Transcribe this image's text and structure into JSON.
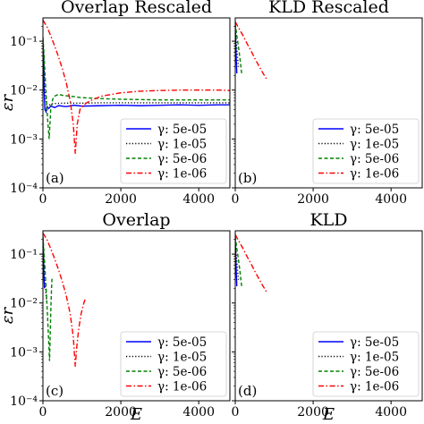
{
  "chart_data": [
    {
      "type": "line",
      "panel_label": "(a)",
      "title": "Overlap Rescaled",
      "xlabel": "",
      "ylabel": "εr",
      "xscale": "linear",
      "yscale": "log",
      "xlim": [
        0,
        4800
      ],
      "ylim": [
        0.0001,
        0.3
      ],
      "xticks": [
        0,
        2000,
        4000
      ],
      "xtick_labels": [
        "0",
        "2000",
        "4000"
      ],
      "yticks": [
        0.0001,
        0.001,
        0.01,
        0.1
      ],
      "ytick_labels": [
        "10⁻⁴",
        "10⁻³",
        "10⁻²",
        "10⁻¹"
      ],
      "show_yticklabels": true,
      "show_xticklabels": true,
      "legend_position": "lower-right",
      "series": [
        {
          "name": "γ: 5e-05",
          "color": "#0000ff",
          "dash": "solid",
          "x": [
            0,
            15,
            30,
            50,
            80,
            100,
            150,
            200,
            300,
            400,
            600,
            800,
            1000,
            1500,
            2000,
            2500,
            3000,
            3500,
            4000,
            4500,
            4800
          ],
          "y": [
            0.1,
            0.05,
            0.01,
            0.004,
            0.0036,
            0.0045,
            0.0042,
            0.0047,
            0.0044,
            0.0048,
            0.0046,
            0.0049,
            0.0047,
            0.0048,
            0.0049,
            0.0048,
            0.0049,
            0.005,
            0.0049,
            0.005,
            0.005
          ]
        },
        {
          "name": "γ: 1e-05",
          "color": "#000000",
          "dash": "dotted",
          "x": [
            0,
            20,
            50,
            100,
            150,
            200,
            300,
            500,
            800,
            1000,
            1500,
            2000,
            2500,
            3000,
            3500,
            4000,
            4500,
            4800
          ],
          "y": [
            0.12,
            0.05,
            0.01,
            0.0045,
            0.0048,
            0.0052,
            0.0053,
            0.0054,
            0.0054,
            0.0054,
            0.0055,
            0.0055,
            0.0055,
            0.0055,
            0.0055,
            0.0055,
            0.0055,
            0.0055
          ]
        },
        {
          "name": "γ: 5e-06",
          "color": "#008000",
          "dash": "dashed",
          "x": [
            0,
            30,
            70,
            120,
            160,
            200,
            250,
            300,
            400,
            500,
            700,
            1000,
            1500,
            2000,
            2500,
            3000,
            3500,
            4000,
            4500,
            4800
          ],
          "y": [
            0.12,
            0.05,
            0.012,
            0.0025,
            0.001,
            0.004,
            0.0065,
            0.0075,
            0.0082,
            0.0078,
            0.0075,
            0.007,
            0.0067,
            0.0065,
            0.0064,
            0.0063,
            0.0063,
            0.0063,
            0.0063,
            0.0063
          ]
        },
        {
          "name": "γ: 1e-06",
          "color": "#ff0000",
          "dash": "dashdot",
          "x": [
            0,
            100,
            200,
            300,
            400,
            500,
            600,
            700,
            780,
            830,
            880,
            950,
            1050,
            1200,
            1500,
            2000,
            2500,
            3000,
            3500,
            4000,
            4500,
            4800
          ],
          "y": [
            0.27,
            0.2,
            0.13,
            0.08,
            0.048,
            0.027,
            0.014,
            0.006,
            0.002,
            0.0005,
            0.002,
            0.004,
            0.005,
            0.006,
            0.0075,
            0.0088,
            0.0095,
            0.0098,
            0.01,
            0.01,
            0.01,
            0.0098
          ]
        }
      ]
    },
    {
      "type": "line",
      "panel_label": "(b)",
      "title": "KLD Rescaled",
      "xlabel": "",
      "ylabel": "",
      "xscale": "linear",
      "yscale": "log",
      "xlim": [
        0,
        4800
      ],
      "ylim": [
        0.0001,
        0.3
      ],
      "xticks": [
        0,
        2000,
        4000
      ],
      "xtick_labels": [
        "0",
        "2000",
        "4000"
      ],
      "yticks": [
        0.0001,
        0.001,
        0.01,
        0.1
      ],
      "ytick_labels": [
        "10⁻⁴",
        "10⁻³",
        "10⁻²",
        "10⁻¹"
      ],
      "show_yticklabels": false,
      "show_xticklabels": true,
      "legend_position": "lower-right",
      "series": [
        {
          "name": "γ: 5e-05",
          "color": "#0000ff",
          "dash": "solid",
          "x": [
            0,
            10,
            20,
            30,
            40
          ],
          "y": [
            0.2,
            0.1,
            0.06,
            0.035,
            0.022
          ]
        },
        {
          "name": "γ: 1e-05",
          "color": "#000000",
          "dash": "dotted",
          "x": [
            0,
            20,
            40,
            60,
            80
          ],
          "y": [
            0.2,
            0.11,
            0.07,
            0.045,
            0.03
          ]
        },
        {
          "name": "γ: 5e-06",
          "color": "#008000",
          "dash": "dashed",
          "x": [
            0,
            40,
            80,
            120,
            170
          ],
          "y": [
            0.23,
            0.13,
            0.08,
            0.045,
            0.02
          ]
        },
        {
          "name": "γ: 1e-06",
          "color": "#ff0000",
          "dash": "dashdot",
          "x": [
            0,
            100,
            200,
            300,
            400,
            500,
            600,
            700,
            800
          ],
          "y": [
            0.25,
            0.18,
            0.13,
            0.09,
            0.065,
            0.045,
            0.032,
            0.023,
            0.017
          ]
        }
      ]
    },
    {
      "type": "line",
      "panel_label": "(c)",
      "title": "Overlap",
      "xlabel": "E",
      "ylabel": "εr",
      "xscale": "linear",
      "yscale": "log",
      "xlim": [
        0,
        4800
      ],
      "ylim": [
        0.0001,
        0.3
      ],
      "xticks": [
        0,
        2000,
        4000
      ],
      "xtick_labels": [
        "0",
        "2000",
        "4000"
      ],
      "yticks": [
        0.0001,
        0.001,
        0.01,
        0.1
      ],
      "ytick_labels": [
        "10⁻⁴",
        "10⁻³",
        "10⁻²",
        "10⁻¹"
      ],
      "show_yticklabels": true,
      "show_xticklabels": true,
      "legend_position": "lower-right",
      "series": [
        {
          "name": "γ: 5e-05",
          "color": "#0000ff",
          "dash": "solid",
          "x": [
            0,
            10,
            20,
            30,
            40
          ],
          "y": [
            0.2,
            0.1,
            0.05,
            0.03,
            0.02
          ]
        },
        {
          "name": "γ: 1e-05",
          "color": "#000000",
          "dash": "dotted",
          "x": [
            0,
            20,
            40,
            60,
            80,
            100
          ],
          "y": [
            0.22,
            0.1,
            0.045,
            0.025,
            0.015,
            0.01
          ]
        },
        {
          "name": "γ: 5e-06",
          "color": "#008000",
          "dash": "dashed",
          "x": [
            0,
            30,
            60,
            90,
            120,
            150,
            170,
            185,
            200,
            215,
            230,
            245
          ],
          "y": [
            0.23,
            0.1,
            0.04,
            0.015,
            0.005,
            0.0015,
            0.00065,
            0.002,
            0.006,
            0.015,
            0.03,
            0.035
          ]
        },
        {
          "name": "γ: 1e-06",
          "color": "#ff0000",
          "dash": "dashdot",
          "x": [
            0,
            100,
            200,
            300,
            400,
            500,
            600,
            700,
            780,
            830,
            870,
            920,
            980,
            1050,
            1100
          ],
          "y": [
            0.27,
            0.2,
            0.13,
            0.08,
            0.048,
            0.027,
            0.014,
            0.006,
            0.002,
            0.0005,
            0.0013,
            0.003,
            0.006,
            0.01,
            0.013
          ]
        }
      ]
    },
    {
      "type": "line",
      "panel_label": "(d)",
      "title": "KLD",
      "xlabel": "E",
      "ylabel": "",
      "xscale": "linear",
      "yscale": "log",
      "xlim": [
        0,
        4800
      ],
      "ylim": [
        0.0001,
        0.3
      ],
      "xticks": [
        0,
        2000,
        4000
      ],
      "xtick_labels": [
        "0",
        "2000",
        "4000"
      ],
      "yticks": [
        0.0001,
        0.001,
        0.01,
        0.1
      ],
      "ytick_labels": [
        "10⁻⁴",
        "10⁻³",
        "10⁻²",
        "10⁻¹"
      ],
      "show_yticklabels": false,
      "show_xticklabels": true,
      "legend_position": "lower-right",
      "series": [
        {
          "name": "γ: 5e-05",
          "color": "#0000ff",
          "dash": "solid",
          "x": [
            0,
            10,
            20,
            30,
            40
          ],
          "y": [
            0.2,
            0.1,
            0.06,
            0.035,
            0.022
          ]
        },
        {
          "name": "γ: 1e-05",
          "color": "#000000",
          "dash": "dotted",
          "x": [
            0,
            20,
            40,
            60,
            80
          ],
          "y": [
            0.2,
            0.11,
            0.07,
            0.045,
            0.03
          ]
        },
        {
          "name": "γ: 5e-06",
          "color": "#008000",
          "dash": "dashed",
          "x": [
            0,
            40,
            80,
            120,
            170
          ],
          "y": [
            0.23,
            0.13,
            0.08,
            0.045,
            0.02
          ]
        },
        {
          "name": "γ: 1e-06",
          "color": "#ff0000",
          "dash": "dashdot",
          "x": [
            0,
            100,
            200,
            300,
            400,
            500,
            600,
            700,
            800
          ],
          "y": [
            0.25,
            0.18,
            0.13,
            0.09,
            0.065,
            0.045,
            0.032,
            0.023,
            0.017
          ]
        }
      ]
    }
  ]
}
